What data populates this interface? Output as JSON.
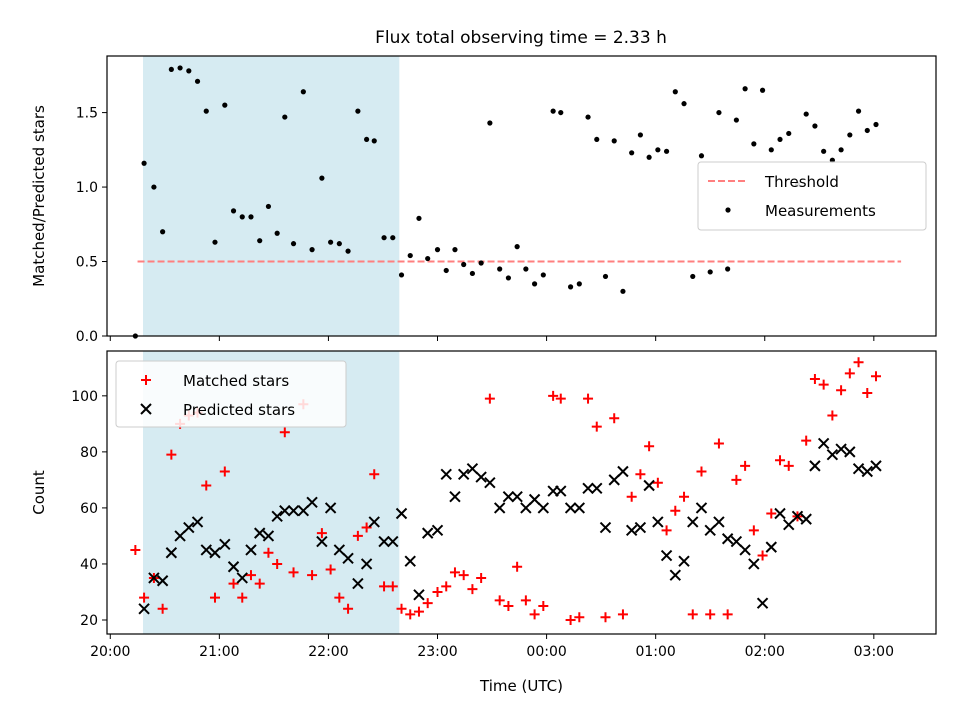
{
  "title": "Flux total observing time = 2.33 h",
  "chart_data": [
    {
      "type": "scatter",
      "ylabel": "Matched/Predicted stars",
      "xlim": [
        19.97,
        27.57
      ],
      "ylim": [
        0,
        1.88
      ],
      "yticks": [
        0.0,
        0.5,
        1.0,
        1.5
      ],
      "ytick_labels": [
        "0.0",
        "0.5",
        "1.0",
        "1.5"
      ],
      "shaded_span": [
        20.3,
        22.65
      ],
      "threshold": {
        "name": "Threshold",
        "y": 0.5,
        "x_range": [
          20.25,
          27.25
        ],
        "color": "#ff7f7f"
      },
      "series": [
        {
          "name": "Measurements",
          "color": "#000000",
          "points": [
            [
              20.23,
              0.0
            ],
            [
              20.31,
              1.16
            ],
            [
              20.4,
              1.0
            ],
            [
              20.48,
              0.7
            ],
            [
              20.56,
              1.79
            ],
            [
              20.64,
              1.8
            ],
            [
              20.72,
              1.78
            ],
            [
              20.8,
              1.71
            ],
            [
              20.88,
              1.51
            ],
            [
              20.96,
              0.63
            ],
            [
              21.05,
              1.55
            ],
            [
              21.13,
              0.84
            ],
            [
              21.21,
              0.8
            ],
            [
              21.29,
              0.8
            ],
            [
              21.37,
              0.64
            ],
            [
              21.45,
              0.87
            ],
            [
              21.53,
              0.69
            ],
            [
              21.6,
              1.47
            ],
            [
              21.68,
              0.62
            ],
            [
              21.77,
              1.64
            ],
            [
              21.85,
              0.58
            ],
            [
              21.94,
              1.06
            ],
            [
              22.02,
              0.63
            ],
            [
              22.1,
              0.62
            ],
            [
              22.18,
              0.57
            ],
            [
              22.27,
              1.51
            ],
            [
              22.35,
              1.32
            ],
            [
              22.42,
              1.31
            ],
            [
              22.51,
              0.66
            ],
            [
              22.59,
              0.66
            ],
            [
              22.67,
              0.41
            ],
            [
              22.75,
              0.54
            ],
            [
              22.83,
              0.79
            ],
            [
              22.91,
              0.52
            ],
            [
              23.0,
              0.58
            ],
            [
              23.08,
              0.44
            ],
            [
              23.16,
              0.58
            ],
            [
              23.24,
              0.48
            ],
            [
              23.32,
              0.42
            ],
            [
              23.4,
              0.49
            ],
            [
              23.48,
              1.43
            ],
            [
              23.57,
              0.45
            ],
            [
              23.65,
              0.39
            ],
            [
              23.73,
              0.6
            ],
            [
              23.81,
              0.45
            ],
            [
              23.89,
              0.35
            ],
            [
              23.97,
              0.41
            ],
            [
              24.06,
              1.51
            ],
            [
              24.13,
              1.5
            ],
            [
              24.22,
              0.33
            ],
            [
              24.3,
              0.35
            ],
            [
              24.38,
              1.47
            ],
            [
              24.46,
              1.32
            ],
            [
              24.54,
              0.4
            ],
            [
              24.62,
              1.31
            ],
            [
              24.7,
              0.3
            ],
            [
              24.78,
              1.23
            ],
            [
              24.86,
              1.35
            ],
            [
              24.94,
              1.2
            ],
            [
              25.02,
              1.25
            ],
            [
              25.1,
              1.24
            ],
            [
              25.18,
              1.64
            ],
            [
              25.26,
              1.56
            ],
            [
              25.34,
              0.4
            ],
            [
              25.42,
              1.21
            ],
            [
              25.5,
              0.43
            ],
            [
              25.58,
              1.5
            ],
            [
              25.66,
              0.45
            ],
            [
              25.74,
              1.45
            ],
            [
              25.82,
              1.66
            ],
            [
              25.9,
              1.29
            ],
            [
              25.98,
              1.65
            ],
            [
              26.06,
              1.25
            ],
            [
              26.14,
              1.32
            ],
            [
              26.22,
              1.36
            ],
            [
              26.3,
              1.02
            ],
            [
              26.38,
              1.49
            ],
            [
              26.46,
              1.41
            ],
            [
              26.54,
              1.24
            ],
            [
              26.62,
              1.18
            ],
            [
              26.7,
              1.25
            ],
            [
              26.78,
              1.35
            ],
            [
              26.86,
              1.51
            ],
            [
              26.94,
              1.38
            ],
            [
              27.02,
              1.42
            ]
          ]
        }
      ],
      "legend": {
        "placement": "center-right",
        "entries": [
          "Threshold",
          "Measurements"
        ]
      }
    },
    {
      "type": "scatter",
      "xlabel": "Time (UTC)",
      "ylabel": "Count",
      "xlim": [
        19.97,
        27.57
      ],
      "ylim": [
        15,
        116
      ],
      "xticks": [
        20,
        21,
        22,
        23,
        24,
        25,
        26,
        27
      ],
      "xtick_labels": [
        "20:00",
        "21:00",
        "22:00",
        "23:00",
        "00:00",
        "01:00",
        "02:00",
        "03:00"
      ],
      "yticks": [
        20,
        40,
        60,
        80,
        100
      ],
      "ytick_labels": [
        "20",
        "40",
        "60",
        "80",
        "100"
      ],
      "shaded_span": [
        20.3,
        22.65
      ],
      "series": [
        {
          "name": "Matched stars",
          "marker": "plus",
          "color": "#ff0000",
          "points": [
            [
              20.23,
              45
            ],
            [
              20.31,
              28
            ],
            [
              20.4,
              35
            ],
            [
              20.48,
              24
            ],
            [
              20.56,
              79
            ],
            [
              20.64,
              90
            ],
            [
              20.72,
              93
            ],
            [
              20.8,
              94
            ],
            [
              20.88,
              68
            ],
            [
              20.96,
              28
            ],
            [
              21.05,
              73
            ],
            [
              21.13,
              33
            ],
            [
              21.21,
              28
            ],
            [
              21.29,
              36
            ],
            [
              21.37,
              33
            ],
            [
              21.45,
              44
            ],
            [
              21.53,
              40
            ],
            [
              21.6,
              87
            ],
            [
              21.68,
              37
            ],
            [
              21.77,
              97
            ],
            [
              21.85,
              36
            ],
            [
              21.94,
              51
            ],
            [
              22.02,
              38
            ],
            [
              22.1,
              28
            ],
            [
              22.18,
              24
            ],
            [
              22.27,
              50
            ],
            [
              22.35,
              53
            ],
            [
              22.42,
              72
            ],
            [
              22.51,
              32
            ],
            [
              22.59,
              32
            ],
            [
              22.67,
              24
            ],
            [
              22.75,
              22
            ],
            [
              22.83,
              23
            ],
            [
              22.91,
              26
            ],
            [
              23.0,
              30
            ],
            [
              23.08,
              32
            ],
            [
              23.16,
              37
            ],
            [
              23.24,
              36
            ],
            [
              23.32,
              31
            ],
            [
              23.4,
              35
            ],
            [
              23.48,
              99
            ],
            [
              23.57,
              27
            ],
            [
              23.65,
              25
            ],
            [
              23.73,
              39
            ],
            [
              23.81,
              27
            ],
            [
              23.89,
              22
            ],
            [
              23.97,
              25
            ],
            [
              24.06,
              100
            ],
            [
              24.13,
              99
            ],
            [
              24.22,
              20
            ],
            [
              24.3,
              21
            ],
            [
              24.38,
              99
            ],
            [
              24.46,
              89
            ],
            [
              24.54,
              21
            ],
            [
              24.62,
              92
            ],
            [
              24.7,
              22
            ],
            [
              24.78,
              64
            ],
            [
              24.86,
              72
            ],
            [
              24.94,
              82
            ],
            [
              25.02,
              69
            ],
            [
              25.1,
              52
            ],
            [
              25.18,
              59
            ],
            [
              25.26,
              64
            ],
            [
              25.34,
              22
            ],
            [
              25.42,
              73
            ],
            [
              25.5,
              22
            ],
            [
              25.58,
              83
            ],
            [
              25.66,
              22
            ],
            [
              25.74,
              70
            ],
            [
              25.82,
              75
            ],
            [
              25.9,
              52
            ],
            [
              25.98,
              43
            ],
            [
              26.06,
              58
            ],
            [
              26.14,
              77
            ],
            [
              26.22,
              75
            ],
            [
              26.3,
              57
            ],
            [
              26.38,
              84
            ],
            [
              26.46,
              106
            ],
            [
              26.54,
              104
            ],
            [
              26.62,
              93
            ],
            [
              26.7,
              102
            ],
            [
              26.78,
              108
            ],
            [
              26.86,
              112
            ],
            [
              26.94,
              101
            ],
            [
              27.02,
              107
            ]
          ]
        },
        {
          "name": "Predicted stars",
          "marker": "x",
          "color": "#000000",
          "points": [
            [
              20.31,
              24
            ],
            [
              20.4,
              35
            ],
            [
              20.48,
              34
            ],
            [
              20.56,
              44
            ],
            [
              20.64,
              50
            ],
            [
              20.72,
              53
            ],
            [
              20.8,
              55
            ],
            [
              20.88,
              45
            ],
            [
              20.96,
              44
            ],
            [
              21.05,
              47
            ],
            [
              21.13,
              39
            ],
            [
              21.21,
              35
            ],
            [
              21.29,
              45
            ],
            [
              21.37,
              51
            ],
            [
              21.45,
              50
            ],
            [
              21.53,
              57
            ],
            [
              21.6,
              59
            ],
            [
              21.68,
              59
            ],
            [
              21.77,
              59
            ],
            [
              21.85,
              62
            ],
            [
              21.94,
              48
            ],
            [
              22.02,
              60
            ],
            [
              22.1,
              45
            ],
            [
              22.18,
              42
            ],
            [
              22.27,
              33
            ],
            [
              22.35,
              40
            ],
            [
              22.42,
              55
            ],
            [
              22.51,
              48
            ],
            [
              22.59,
              48
            ],
            [
              22.67,
              58
            ],
            [
              22.75,
              41
            ],
            [
              22.83,
              29
            ],
            [
              22.91,
              51
            ],
            [
              23.0,
              52
            ],
            [
              23.08,
              72
            ],
            [
              23.16,
              64
            ],
            [
              23.24,
              72
            ],
            [
              23.32,
              74
            ],
            [
              23.4,
              71
            ],
            [
              23.48,
              69
            ],
            [
              23.57,
              60
            ],
            [
              23.65,
              64
            ],
            [
              23.73,
              64
            ],
            [
              23.81,
              60
            ],
            [
              23.89,
              63
            ],
            [
              23.97,
              60
            ],
            [
              24.06,
              66
            ],
            [
              24.13,
              66
            ],
            [
              24.22,
              60
            ],
            [
              24.3,
              60
            ],
            [
              24.38,
              67
            ],
            [
              24.46,
              67
            ],
            [
              24.54,
              53
            ],
            [
              24.62,
              70
            ],
            [
              24.7,
              73
            ],
            [
              24.78,
              52
            ],
            [
              24.86,
              53
            ],
            [
              24.94,
              68
            ],
            [
              25.02,
              55
            ],
            [
              25.1,
              43
            ],
            [
              25.18,
              36
            ],
            [
              25.26,
              41
            ],
            [
              25.34,
              55
            ],
            [
              25.42,
              60
            ],
            [
              25.5,
              52
            ],
            [
              25.58,
              55
            ],
            [
              25.66,
              49
            ],
            [
              25.74,
              48
            ],
            [
              25.82,
              45
            ],
            [
              25.9,
              40
            ],
            [
              25.98,
              26
            ],
            [
              26.06,
              46
            ],
            [
              26.14,
              58
            ],
            [
              26.22,
              54
            ],
            [
              26.3,
              57
            ],
            [
              26.38,
              56
            ],
            [
              26.46,
              75
            ],
            [
              26.54,
              83
            ],
            [
              26.62,
              79
            ],
            [
              26.7,
              81
            ],
            [
              26.78,
              80
            ],
            [
              26.86,
              74
            ],
            [
              26.94,
              73
            ],
            [
              27.02,
              75
            ]
          ]
        }
      ],
      "legend": {
        "placement": "upper-left",
        "entries": [
          "Matched stars",
          "Predicted stars"
        ]
      }
    }
  ]
}
